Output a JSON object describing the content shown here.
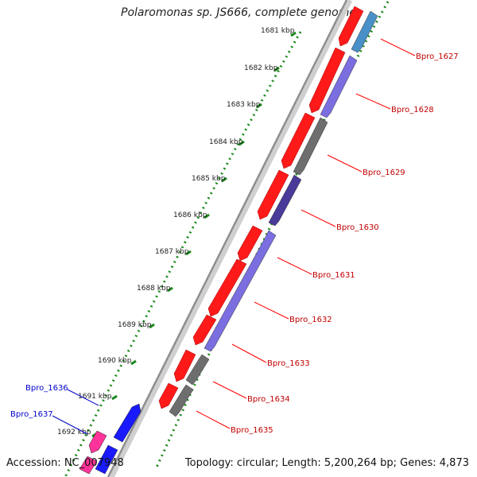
{
  "title": "Polaromonas sp. JS666, complete genome",
  "footer": {
    "accession": "Accession: NC_007948",
    "summary": "Topology: circular; Length: 5,200,264 bp; Genes: 4,873"
  },
  "colors": {
    "forward_cds": "#ff1a1a",
    "reverse_blue": "#7a6ee0",
    "reverse_dark": "#4a3a9a",
    "reverse_gray": "#6e6e6e",
    "steel_blue": "#4a90c8",
    "pink": "#ff3399",
    "blue": "#1a1aff",
    "ticks": "#1a8a1a",
    "backbone": "#999999"
  },
  "scale_labels": [
    "1681 kbp",
    "1682 kbp",
    "1683 kbp",
    "1684 kbp",
    "1685 kbp",
    "1686 kbp",
    "1687 kbp",
    "1688 kbp",
    "1689 kbp",
    "1690 kbp",
    "1691 kbp",
    "1692 kbp"
  ],
  "gene_labels_right": [
    "Bpro_1627",
    "Bpro_1628",
    "Bpro_1629",
    "Bpro_1630",
    "Bpro_1631",
    "Bpro_1632",
    "Bpro_1633",
    "Bpro_1634",
    "Bpro_1635"
  ],
  "gene_labels_left": [
    "Bpro_1636",
    "Bpro_1637"
  ]
}
